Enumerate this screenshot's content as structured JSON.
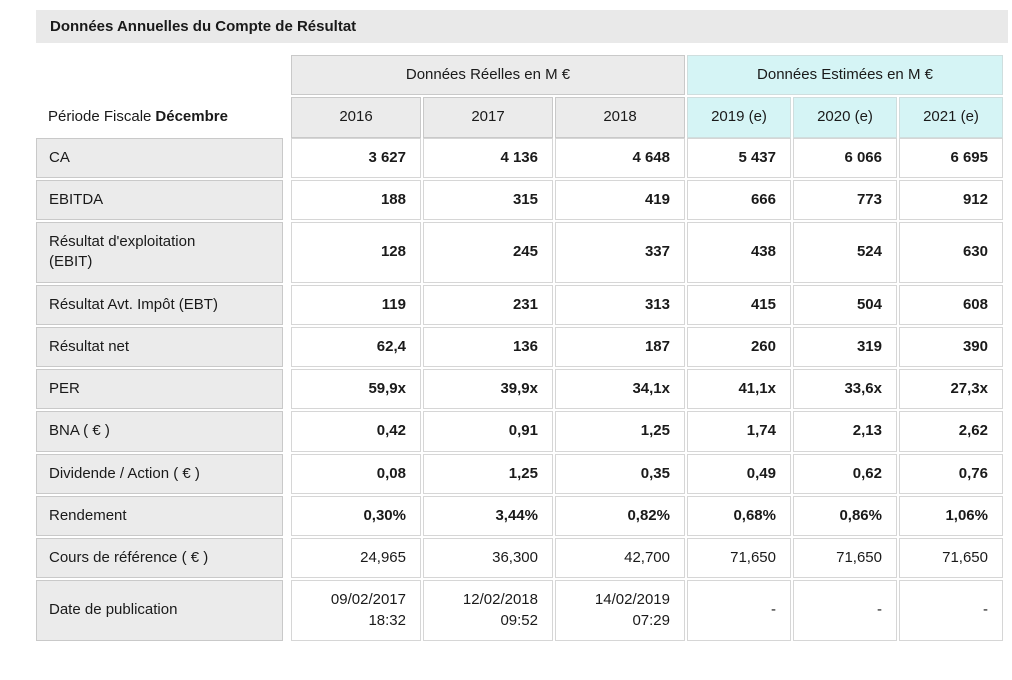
{
  "title": "Données Annuelles du Compte de Résultat",
  "colors": {
    "title_bar_bg": "#e9e9e9",
    "real_header_bg": "#ebebeb",
    "estimated_header_bg": "#d5f4f5",
    "label_cell_bg": "#ebebeb",
    "value_cell_bg": "#ffffff",
    "border": "#d6d6d6",
    "text": "#1a1a1a"
  },
  "table": {
    "group_headers": [
      {
        "label": "Données Réelles en M €",
        "type": "real"
      },
      {
        "label": "Données Estimées en M €",
        "type": "estimated"
      }
    ],
    "period_label": "Période Fiscale",
    "period_value": "Décembre",
    "year_headers": [
      {
        "label": "2016",
        "type": "real"
      },
      {
        "label": "2017",
        "type": "real"
      },
      {
        "label": "2018",
        "type": "real"
      },
      {
        "label": "2019 (e)",
        "type": "estimated"
      },
      {
        "label": "2020 (e)",
        "type": "estimated"
      },
      {
        "label": "2021 (e)",
        "type": "estimated"
      }
    ],
    "rows": [
      {
        "label": "CA",
        "bold": true,
        "values": [
          "3 627",
          "4 136",
          "4 648",
          "5 437",
          "6 066",
          "6 695"
        ]
      },
      {
        "label": "EBITDA",
        "bold": true,
        "values": [
          "188",
          "315",
          "419",
          "666",
          "773",
          "912"
        ]
      },
      {
        "label": "Résultat d'exploitation\n(EBIT)",
        "bold": true,
        "values": [
          "128",
          "245",
          "337",
          "438",
          "524",
          "630"
        ]
      },
      {
        "label": "Résultat Avt. Impôt (EBT)",
        "bold": true,
        "values": [
          "119",
          "231",
          "313",
          "415",
          "504",
          "608"
        ]
      },
      {
        "label": "Résultat net",
        "bold": true,
        "values": [
          "62,4",
          "136",
          "187",
          "260",
          "319",
          "390"
        ]
      },
      {
        "label": "PER",
        "bold": true,
        "values": [
          "59,9x",
          "39,9x",
          "34,1x",
          "41,1x",
          "33,6x",
          "27,3x"
        ]
      },
      {
        "label": "BNA ( € )",
        "bold": true,
        "values": [
          "0,42",
          "0,91",
          "1,25",
          "1,74",
          "2,13",
          "2,62"
        ]
      },
      {
        "label": "Dividende / Action ( € )",
        "bold": true,
        "values": [
          "0,08",
          "1,25",
          "0,35",
          "0,49",
          "0,62",
          "0,76"
        ]
      },
      {
        "label": "Rendement",
        "bold": true,
        "values": [
          "0,30%",
          "3,44%",
          "0,82%",
          "0,68%",
          "0,86%",
          "1,06%"
        ]
      },
      {
        "label": "Cours de référence ( € )",
        "bold": false,
        "values": [
          "24,965",
          "36,300",
          "42,700",
          "71,650",
          "71,650",
          "71,650"
        ]
      },
      {
        "label": "Date de publication",
        "bold": false,
        "values": [
          "09/02/2017\n18:32",
          "12/02/2018\n09:52",
          "14/02/2019\n07:29",
          "-",
          "-",
          "-"
        ]
      }
    ]
  }
}
